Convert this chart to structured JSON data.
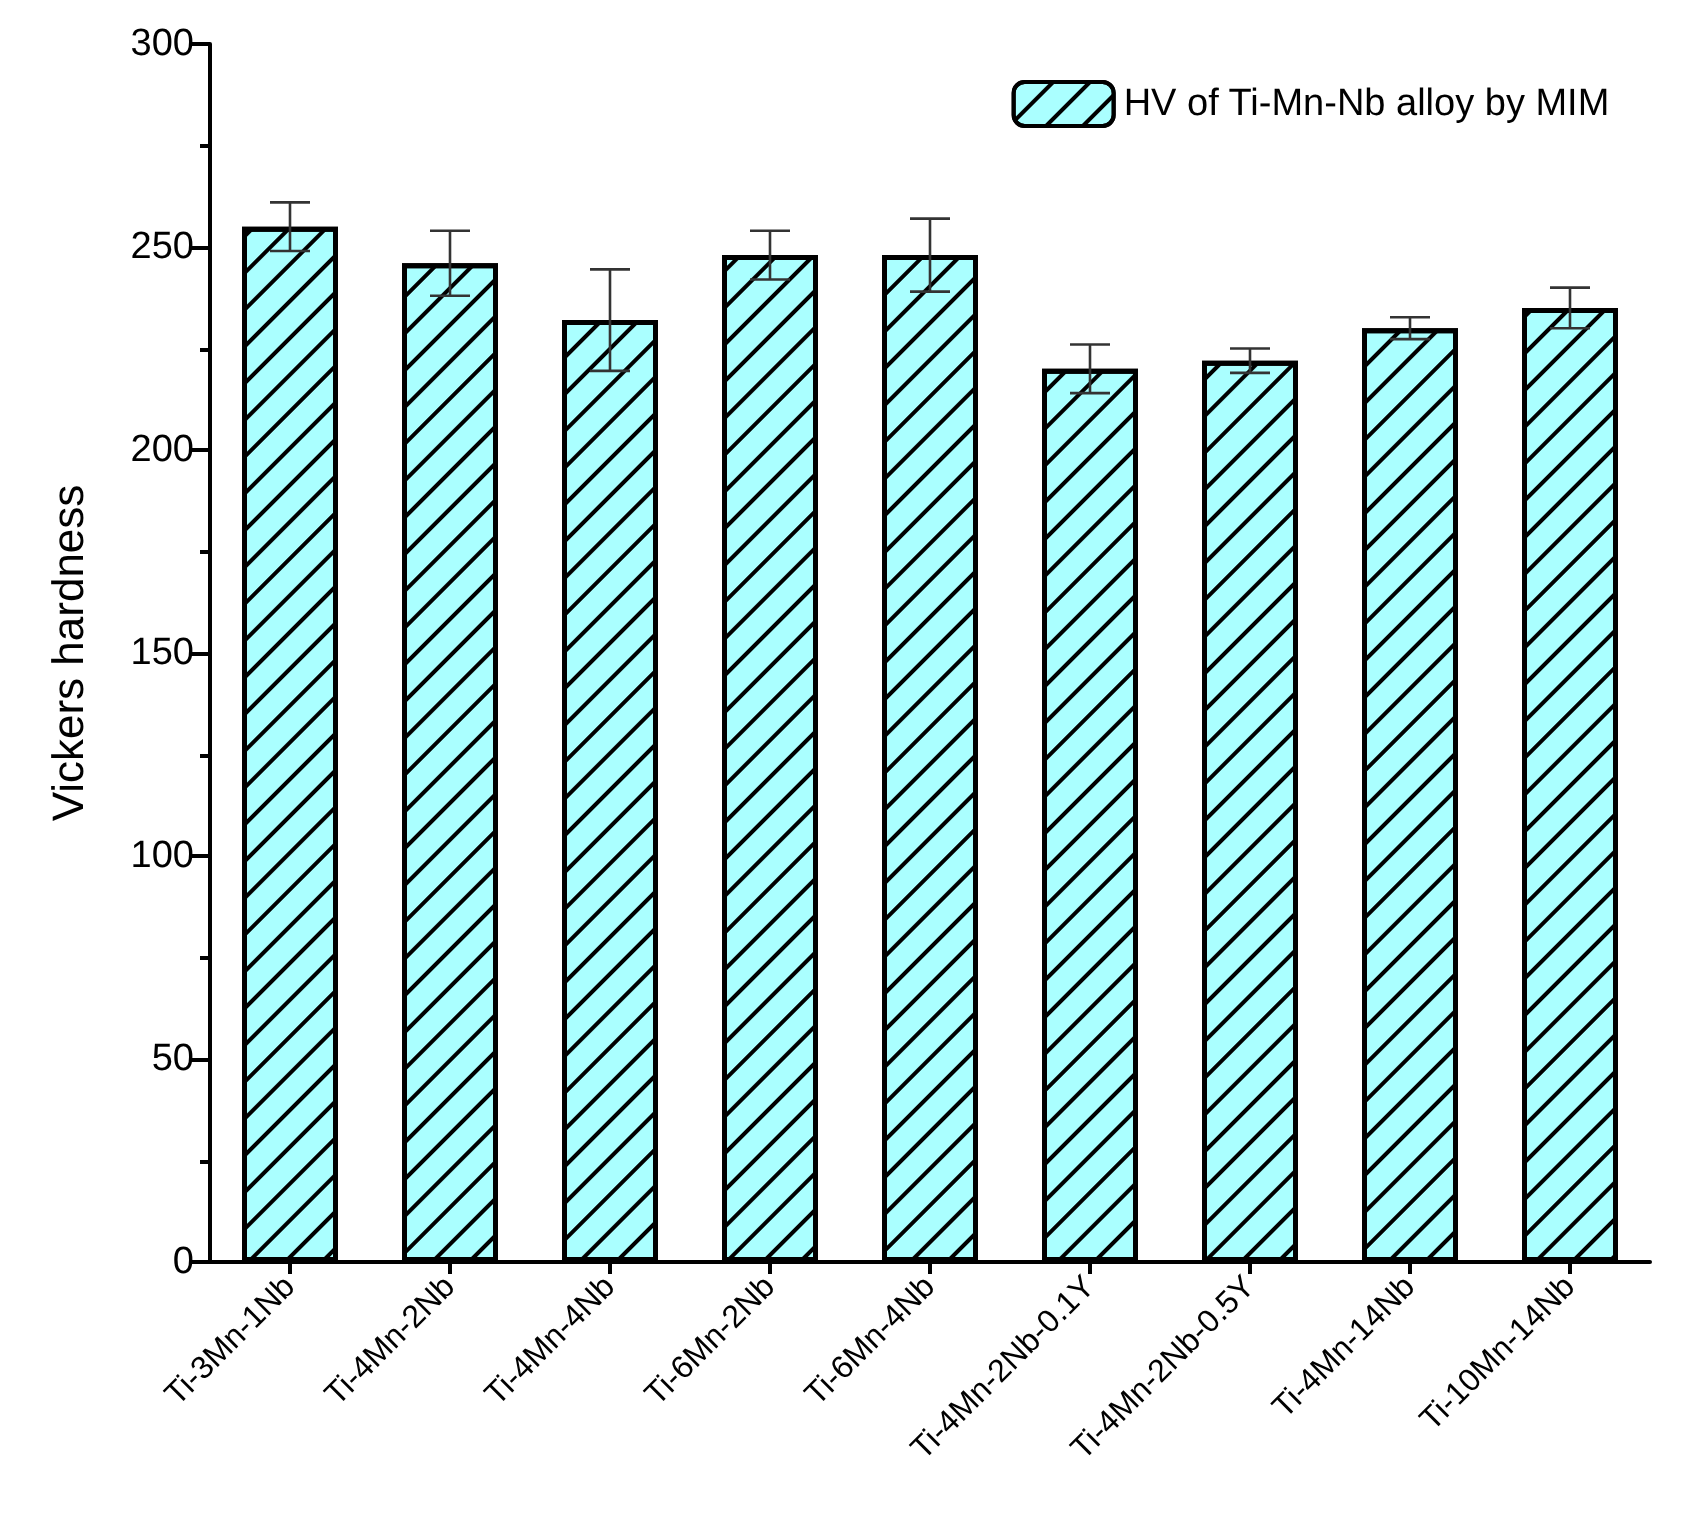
{
  "chart_data": {
    "type": "bar",
    "ylabel": "Vickers hardness",
    "categories": [
      "Ti-3Mn-1Nb",
      "Ti-4Mn-2Nb",
      "Ti-4Mn-4Nb",
      "Ti-6Mn-2Nb",
      "Ti-6Mn-4Nb",
      "Ti-4Mn-2Nb-0.1Y",
      "Ti-4Mn-2Nb-0.5Y",
      "Ti-4Mn-14Nb",
      "Ti-10Mn-14Nb"
    ],
    "series": [
      {
        "name": "HV of Ti-Mn-Nb alloy by MIM",
        "color": "#aaffff",
        "values": [
          255,
          246,
          232,
          248,
          248,
          220,
          222,
          230,
          235
        ],
        "errors": [
          6,
          8,
          12.5,
          6,
          9,
          6,
          3,
          2.7,
          5
        ]
      }
    ],
    "ylim": [
      0,
      300
    ],
    "yticks": [
      0,
      50,
      100,
      150,
      200,
      250,
      300
    ],
    "grid": false,
    "legend": "top right"
  }
}
